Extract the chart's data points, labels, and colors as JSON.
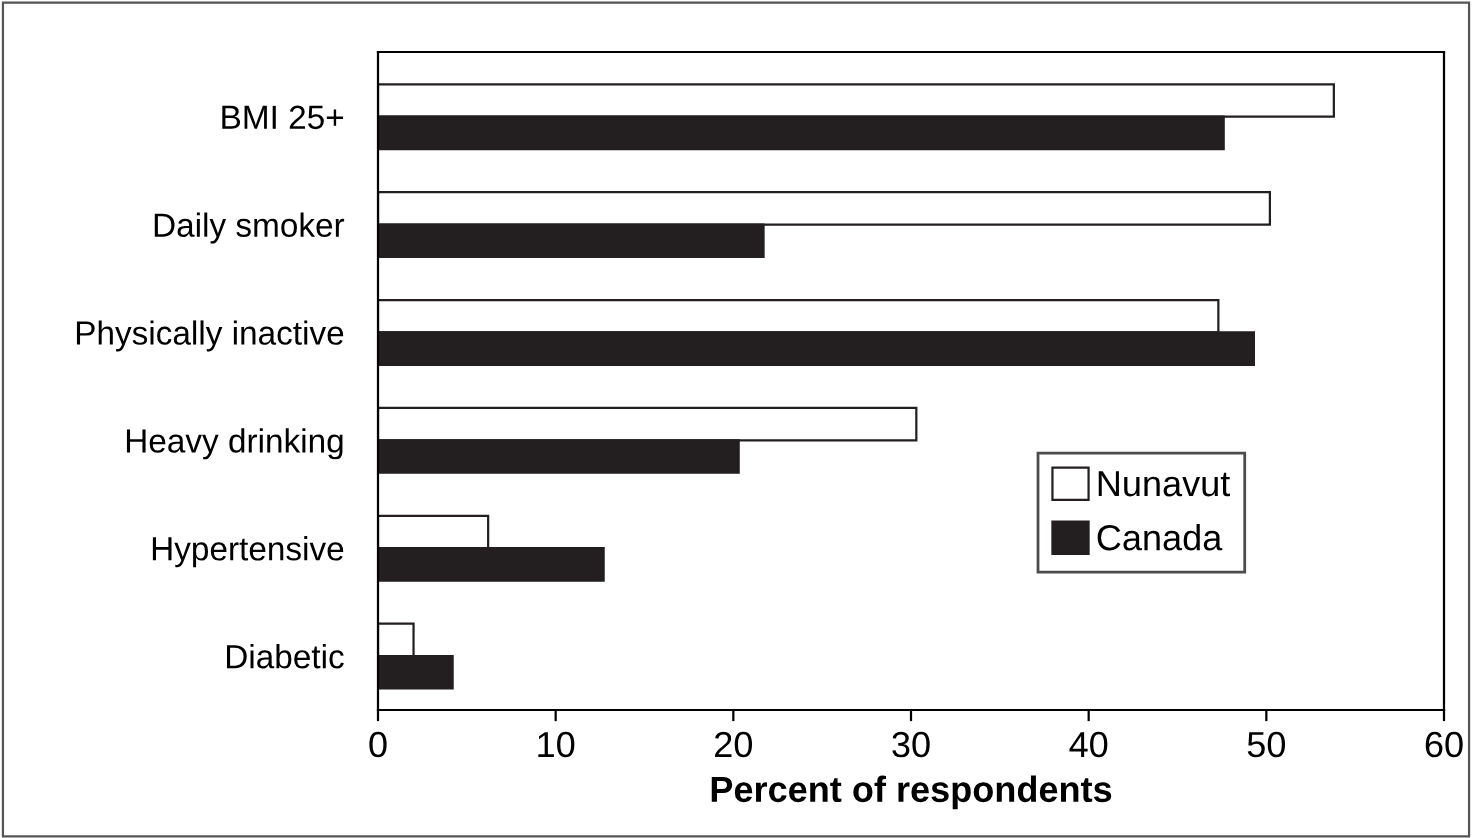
{
  "chart_data": {
    "type": "bar",
    "orientation": "horizontal",
    "xlabel": "Percent of respondents",
    "categories": [
      "BMI 25+",
      "Daily smoker",
      "Physically inactive",
      "Heavy drinking",
      "Hypertensive",
      "Diabetic"
    ],
    "series": [
      {
        "name": "Nunavut",
        "color": "#ffffff",
        "values": [
          53.8,
          50.2,
          47.3,
          30.3,
          6.2,
          2.0
        ]
      },
      {
        "name": "Canada",
        "color": "#231f20",
        "values": [
          47.6,
          21.7,
          49.3,
          20.3,
          12.7,
          4.2
        ]
      }
    ],
    "xlim": [
      0,
      60
    ],
    "xticks": [
      0,
      10,
      20,
      30,
      40,
      50,
      60
    ],
    "grid": false,
    "legend": "right"
  }
}
